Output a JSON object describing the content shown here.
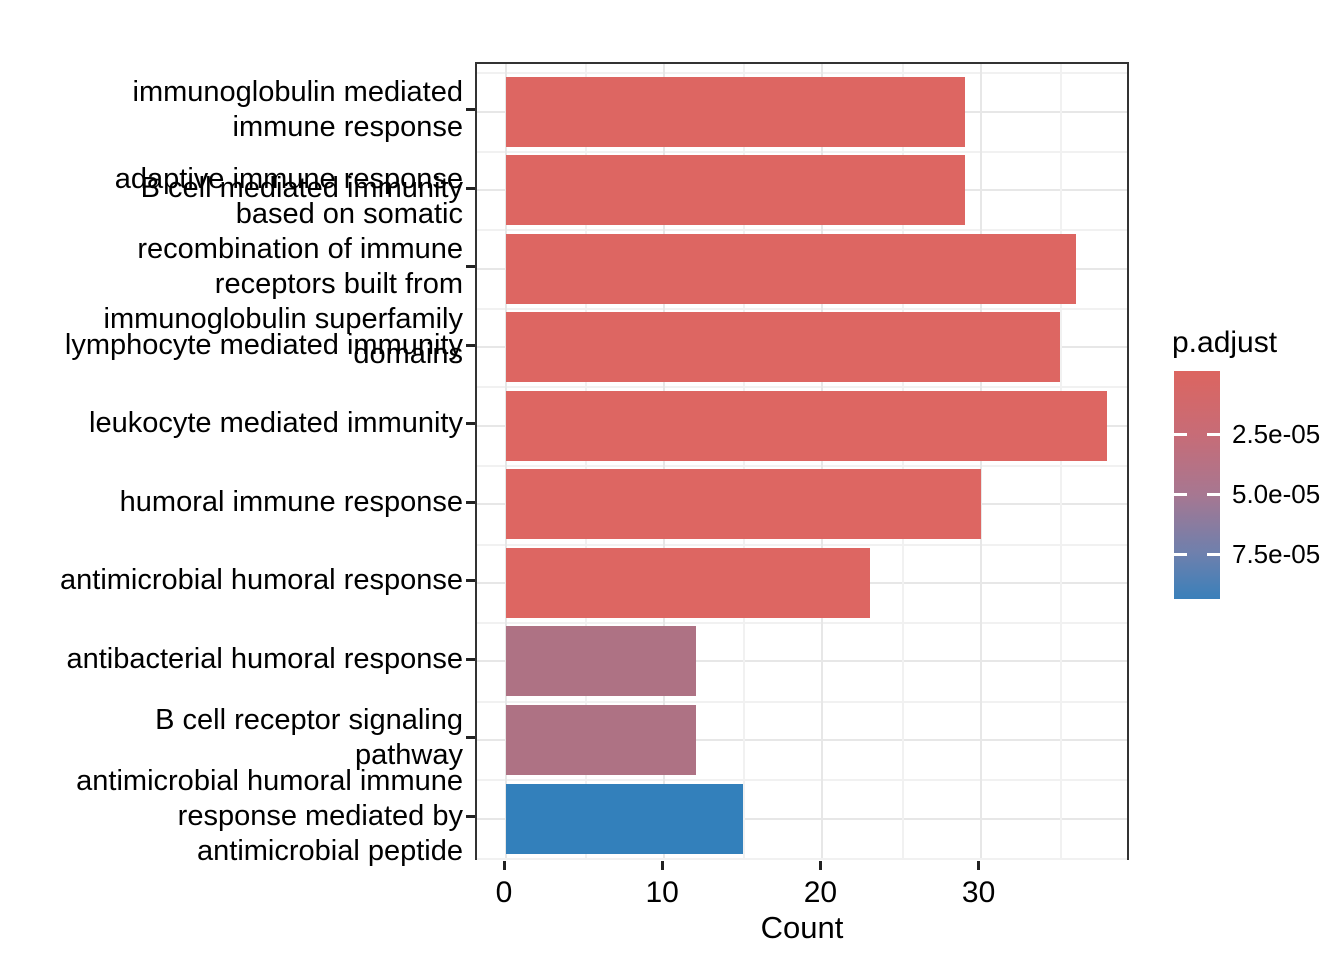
{
  "chart_data": {
    "type": "bar",
    "orientation": "horizontal",
    "title": "",
    "xlabel": "Count",
    "ylabel": "",
    "x_ticks": [
      0,
      10,
      20,
      30
    ],
    "x_minor_ticks": [
      5,
      15,
      25,
      35
    ],
    "xlim": [
      -1.9,
      39.9
    ],
    "grid": true,
    "categories": [
      "immunoglobulin mediated\nimmune response",
      "B cell mediated immunity",
      "adaptive immune response\nbased on somatic\nrecombination of immune\nreceptors built from\nimmunoglobulin superfamily\ndomains",
      "lymphocyte mediated immunity",
      "leukocyte mediated immunity",
      "humoral immune response",
      "antimicrobial humoral response",
      "antibacterial humoral response",
      "B cell receptor signaling\npathway",
      "antimicrobial humoral immune\nresponse mediated by\nantimicrobial peptide"
    ],
    "values": [
      29,
      29,
      36,
      35,
      38,
      30,
      23,
      12,
      12,
      15
    ],
    "bar_colors": [
      "#DD6662",
      "#DD6662",
      "#DD6662",
      "#DD6662",
      "#DD6662",
      "#DD6662",
      "#DD6662",
      "#AE7284",
      "#AE7284",
      "#3380BB"
    ],
    "legend": {
      "title": "p.adjust",
      "position": "right",
      "type": "color-gradient",
      "tick_labels": [
        "2.5e-05",
        "5.0e-05",
        "7.5e-05"
      ],
      "gradient_colors": [
        "#DC6560",
        "#C76C77",
        "#A77791",
        "#6E80AD",
        "#3A80BA"
      ]
    },
    "colors": {
      "bar_red": "#DD6662",
      "bar_mauve": "#AE7284",
      "bar_blue": "#3380BB",
      "grid_major": "#E7E7E7",
      "grid_minor": "#F1F1F1",
      "panel_border": "#333333",
      "background": "#FFFFFF",
      "text": "#000000"
    }
  }
}
